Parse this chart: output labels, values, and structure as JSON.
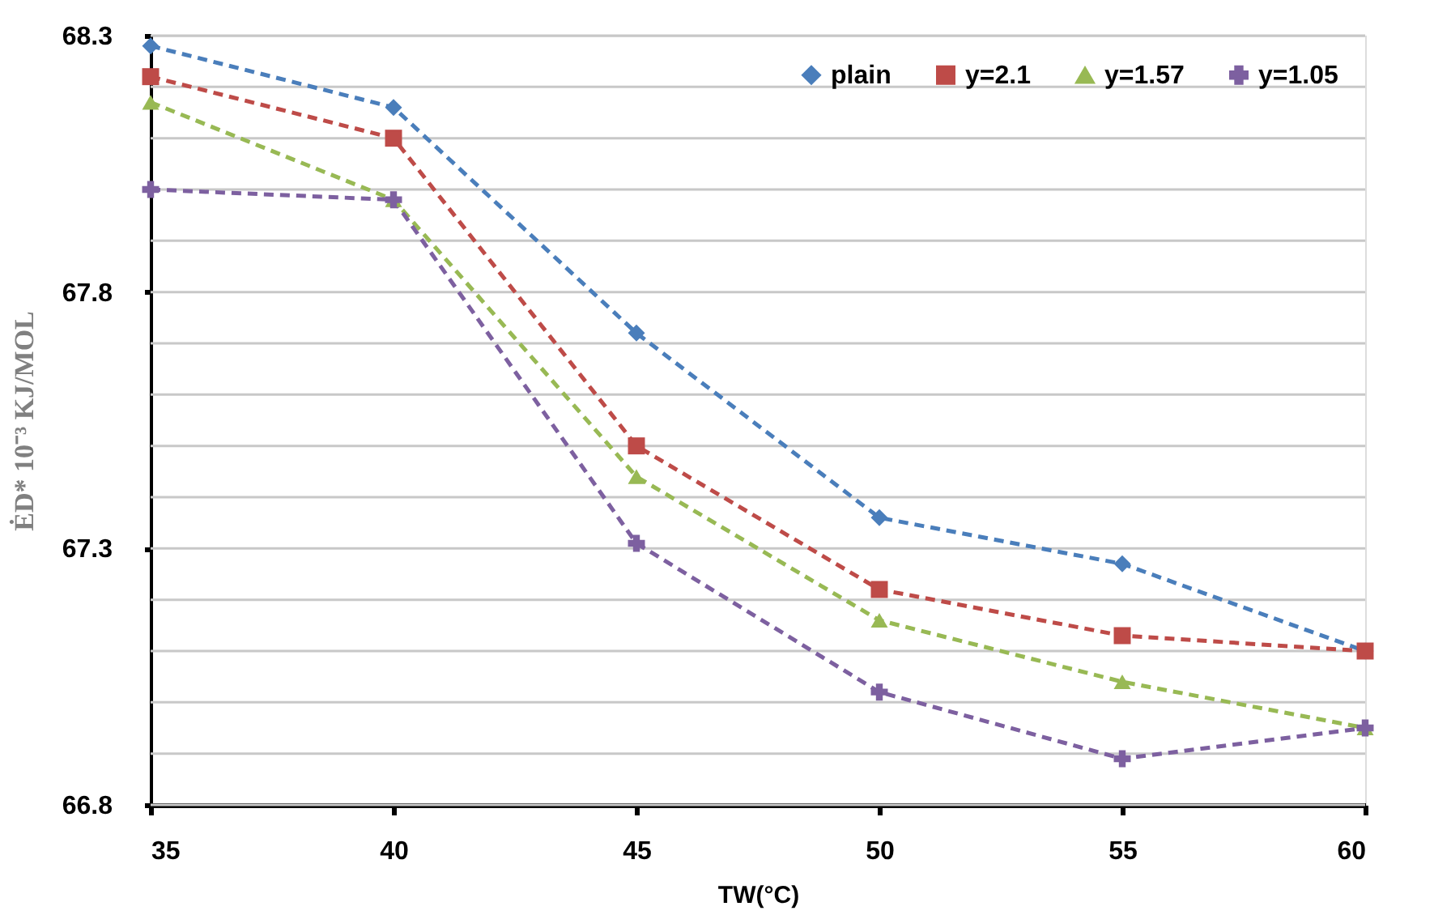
{
  "chart_data": {
    "type": "line",
    "xlabel": "TW(°C)",
    "ylabel": "ĖD* 10⁻³ KJ/MOL",
    "x": [
      35,
      40,
      45,
      50,
      55,
      60
    ],
    "xlim": [
      35,
      60
    ],
    "xticks": [
      35,
      40,
      45,
      50,
      55,
      60
    ],
    "ylim": [
      66.8,
      68.3
    ],
    "yticks": [
      66.8,
      {
        "value": 66.9,
        "label": null
      },
      {
        "value": 67.0,
        "label": null
      },
      {
        "value": 67.1,
        "label": null
      },
      {
        "value": 67.2,
        "label": null
      },
      67.3,
      {
        "value": 67.4,
        "label": null
      },
      {
        "value": 67.5,
        "label": null
      },
      {
        "value": 67.6,
        "label": null
      },
      {
        "value": 67.7,
        "label": null
      },
      67.8,
      {
        "value": 67.9,
        "label": null
      },
      {
        "value": 68.0,
        "label": null
      },
      {
        "value": 68.1,
        "label": null
      },
      {
        "value": 68.2,
        "label": null
      },
      68.3
    ],
    "grid": "y",
    "legend": "top right",
    "line_style": "dashed",
    "series": [
      {
        "name": "plain",
        "color": "#4a7ebb",
        "marker": "diamond",
        "values": [
          68.28,
          68.16,
          67.72,
          67.36,
          67.27,
          67.1
        ]
      },
      {
        "name": "y=2.1",
        "color": "#be4b48",
        "marker": "square",
        "values": [
          68.22,
          68.1,
          67.5,
          67.22,
          67.13,
          67.1
        ]
      },
      {
        "name": "y=1.57",
        "color": "#98b954",
        "marker": "triangle",
        "values": [
          68.17,
          67.98,
          67.44,
          67.16,
          67.04,
          66.95
        ]
      },
      {
        "name": "y=1.05",
        "color": "#7d60a0",
        "marker": "cross",
        "values": [
          68.0,
          67.98,
          67.31,
          67.02,
          66.89,
          66.95
        ]
      }
    ]
  }
}
